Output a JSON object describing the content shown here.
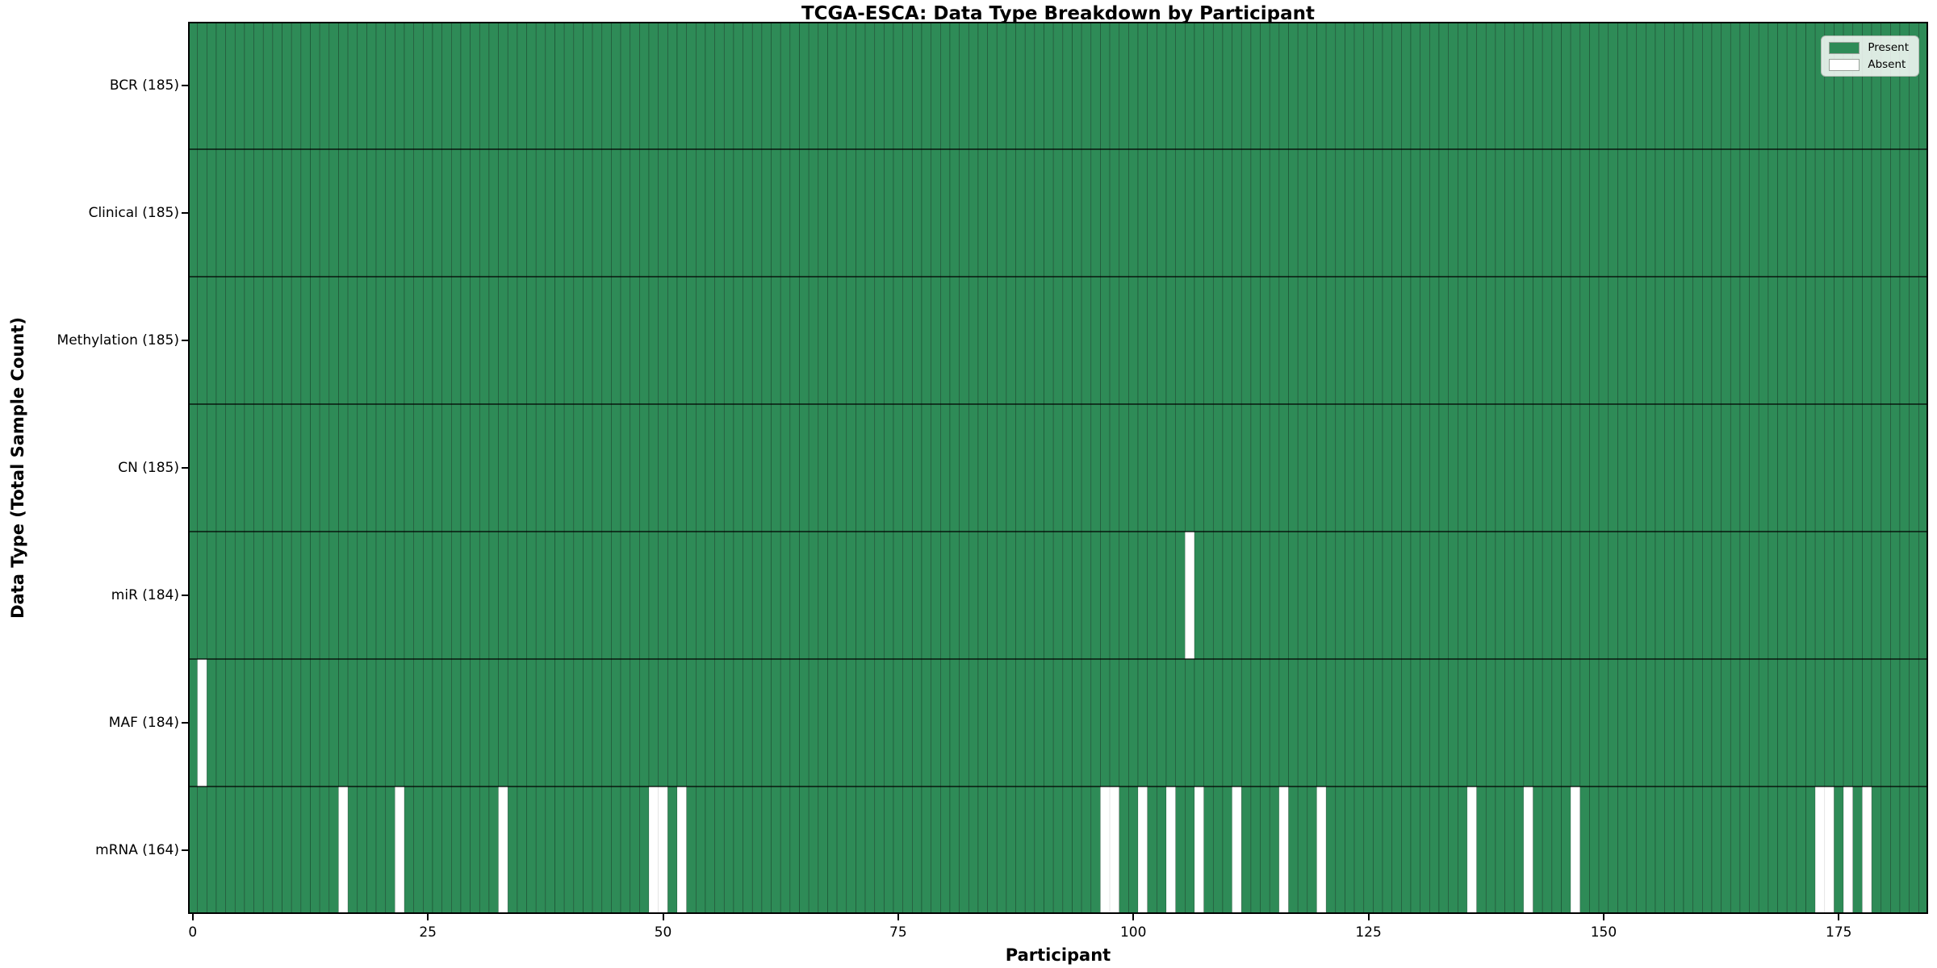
{
  "title": "TCGA-ESCA: Data Type Breakdown by Participant",
  "chart_data": {
    "type": "heatmap",
    "title": "TCGA-ESCA: Data Type Breakdown by Participant",
    "xlabel": "Participant",
    "ylabel": "Data Type (Total Sample Count)",
    "n_participants": 185,
    "x_ticks": [
      0,
      25,
      50,
      75,
      100,
      125,
      150,
      175
    ],
    "x_range": [
      -0.5,
      184.5
    ],
    "grid": "cell-edges",
    "legend_position": "upper right",
    "colors": {
      "present": "#2e8b57",
      "absent": "#ffffff",
      "cell_edge": "rgba(0,0,0,0.40)",
      "absent_edge": "rgba(0,0,0,0.12)",
      "row_separator": "#000000",
      "border": "#000000"
    },
    "legend": [
      {
        "label": "Present",
        "color": "#2e8b57"
      },
      {
        "label": "Absent",
        "color": "#ffffff"
      }
    ],
    "rows": [
      {
        "label": "BCR (185)",
        "data_type": "BCR",
        "count": 185,
        "absent": []
      },
      {
        "label": "Clinical (185)",
        "data_type": "Clinical",
        "count": 185,
        "absent": []
      },
      {
        "label": "Methylation (185)",
        "data_type": "Methylation",
        "count": 185,
        "absent": []
      },
      {
        "label": "CN (185)",
        "data_type": "CN",
        "count": 185,
        "absent": []
      },
      {
        "label": "miR (184)",
        "data_type": "miR",
        "count": 184,
        "absent": [
          106
        ]
      },
      {
        "label": "MAF (184)",
        "data_type": "MAF",
        "count": 184,
        "absent": [
          1
        ]
      },
      {
        "label": "mRNA (164)",
        "data_type": "mRNA",
        "count": 164,
        "absent": [
          16,
          22,
          33,
          49,
          50,
          52,
          97,
          98,
          101,
          104,
          107,
          111,
          116,
          120,
          136,
          142,
          147,
          173,
          174,
          176,
          178
        ]
      }
    ]
  }
}
